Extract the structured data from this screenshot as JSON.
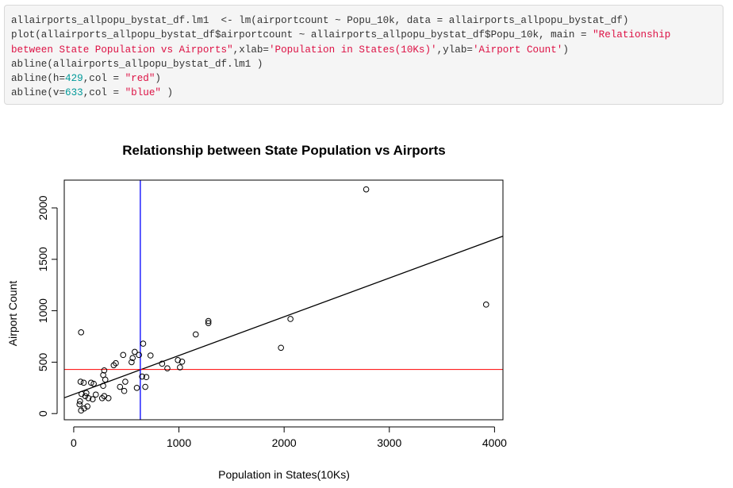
{
  "code": {
    "lines": [
      [
        {
          "t": "allairports_allpopu_bystat_df.lm1  <- lm(airportcount ~ Popu_10k, data = allairports_allpopu_bystat_df)"
        }
      ],
      [
        {
          "t": "plot(allairports_allpopu_bystat_df$airportcount ~ allairports_allpopu_bystat_df$Popu_10k, main = "
        },
        {
          "t": "\"Relationship",
          "k": "str"
        }
      ],
      [
        {
          "t": "between State Population vs Airports\"",
          "k": "str"
        },
        {
          "t": ",xlab="
        },
        {
          "t": "'Population in States(10Ks)'",
          "k": "str"
        },
        {
          "t": ",ylab="
        },
        {
          "t": "'Airport Count'",
          "k": "str"
        },
        {
          "t": ")"
        }
      ],
      [
        {
          "t": "abline(allairports_allpopu_bystat_df.lm1 )"
        }
      ],
      [
        {
          "t": "abline(h="
        },
        {
          "t": "429",
          "k": "num"
        },
        {
          "t": ",col = "
        },
        {
          "t": "\"red\"",
          "k": "str"
        },
        {
          "t": ")"
        }
      ],
      [
        {
          "t": "abline(v="
        },
        {
          "t": "633",
          "k": "num"
        },
        {
          "t": ",col = "
        },
        {
          "t": "\"blue\"",
          "k": "str"
        },
        {
          "t": " )"
        }
      ]
    ]
  },
  "chart_data": {
    "type": "scatter",
    "title": "Relationship between State Population vs Airports",
    "xlabel": "Population in States(10Ks)",
    "ylabel": "Airport Count",
    "xlim": [
      -90,
      4080
    ],
    "ylim": [
      -60,
      2270
    ],
    "xticks": [
      0,
      1000,
      2000,
      3000,
      4000
    ],
    "yticks": [
      0,
      500,
      1000,
      1500,
      2000
    ],
    "grid": false,
    "points": [
      [
        70,
        790
      ],
      [
        65,
        310
      ],
      [
        95,
        300
      ],
      [
        75,
        190
      ],
      [
        110,
        170
      ],
      [
        120,
        200
      ],
      [
        60,
        120
      ],
      [
        55,
        90
      ],
      [
        70,
        30
      ],
      [
        100,
        50
      ],
      [
        130,
        70
      ],
      [
        140,
        150
      ],
      [
        165,
        300
      ],
      [
        190,
        290
      ],
      [
        180,
        140
      ],
      [
        210,
        185
      ],
      [
        270,
        150
      ],
      [
        290,
        170
      ],
      [
        280,
        270
      ],
      [
        300,
        330
      ],
      [
        280,
        375
      ],
      [
        290,
        420
      ],
      [
        330,
        150
      ],
      [
        380,
        470
      ],
      [
        400,
        490
      ],
      [
        440,
        260
      ],
      [
        480,
        220
      ],
      [
        490,
        310
      ],
      [
        470,
        570
      ],
      [
        550,
        500
      ],
      [
        560,
        540
      ],
      [
        580,
        600
      ],
      [
        600,
        250
      ],
      [
        620,
        570
      ],
      [
        650,
        360
      ],
      [
        660,
        680
      ],
      [
        680,
        260
      ],
      [
        690,
        355
      ],
      [
        730,
        565
      ],
      [
        840,
        485
      ],
      [
        890,
        440
      ],
      [
        990,
        520
      ],
      [
        1010,
        450
      ],
      [
        1030,
        505
      ],
      [
        1160,
        770
      ],
      [
        1280,
        880
      ],
      [
        1280,
        900
      ],
      [
        1970,
        640
      ],
      [
        2060,
        920
      ],
      [
        2780,
        2180
      ],
      [
        3920,
        1060
      ]
    ],
    "lines": [
      {
        "kind": "regression",
        "color": "#000000",
        "x": [
          -90,
          4080
        ],
        "y": [
          153.5,
          1725
        ]
      },
      {
        "kind": "hline",
        "value": 429,
        "color": "#ff0000"
      },
      {
        "kind": "vline",
        "value": 633,
        "color": "#0000ff"
      }
    ]
  }
}
